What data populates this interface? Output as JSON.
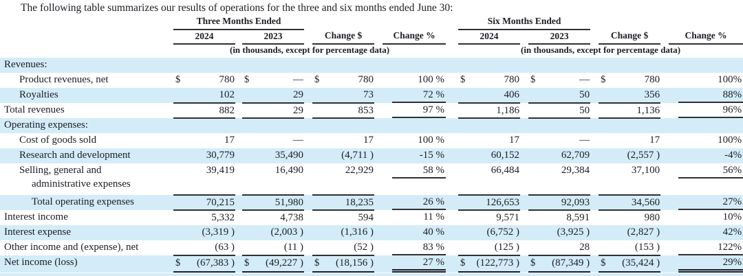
{
  "intro": "The following table summarizes our results of operations for the three and six months ended June 30:",
  "colors": {
    "stripe": "#d3ecf8",
    "text": "#1c1c24",
    "rule": "#2f2f2f"
  },
  "table": {
    "groups": [
      {
        "title": "Three Months Ended",
        "cols": [
          "2024",
          "2023",
          "Change $",
          "Change %"
        ],
        "note": "(in thousands, except for percentage data)"
      },
      {
        "title": "Six Months Ended",
        "cols": [
          "2024",
          "2023",
          "Change $",
          "Change %"
        ],
        "note": "(in thousands, except for percentage data)"
      }
    ],
    "rows": [
      {
        "label": "Revenues:",
        "indent": 0,
        "shaded": true,
        "rule": "none",
        "c": null
      },
      {
        "label": "Product revenues, net",
        "indent": 1,
        "shaded": false,
        "rule": "none",
        "c": [
          [
            "$",
            "780"
          ],
          [
            "$",
            "—"
          ],
          [
            "$",
            "780"
          ],
          "100 %",
          [
            "$",
            "780"
          ],
          [
            "$",
            "—"
          ],
          [
            "$",
            "780"
          ],
          "100%"
        ]
      },
      {
        "label": "Royalties",
        "indent": 1,
        "shaded": true,
        "rule": "below",
        "c": [
          [
            "",
            "102"
          ],
          [
            "",
            "29"
          ],
          [
            "",
            "73"
          ],
          "72 %",
          [
            "",
            "406"
          ],
          [
            "",
            "50"
          ],
          [
            "",
            "356"
          ],
          "88%"
        ]
      },
      {
        "label": "Total revenues",
        "indent": 0,
        "shaded": false,
        "rule": "below",
        "c": [
          [
            "",
            "882"
          ],
          [
            "",
            "29"
          ],
          [
            "",
            "853"
          ],
          "97 %",
          [
            "",
            "1,186"
          ],
          [
            "",
            "50"
          ],
          [
            "",
            "1,136"
          ],
          "96%"
        ]
      },
      {
        "label": "Operating expenses:",
        "indent": 0,
        "shaded": true,
        "rule": "none",
        "c": null
      },
      {
        "label": "Cost of goods sold",
        "indent": 1,
        "shaded": false,
        "rule": "none",
        "c": [
          [
            "",
            "17"
          ],
          [
            "",
            "—"
          ],
          [
            "",
            "17"
          ],
          "100 %",
          [
            "",
            "17"
          ],
          [
            "",
            "—"
          ],
          [
            "",
            "17"
          ],
          "100%"
        ]
      },
      {
        "label": "Research and development",
        "indent": 1,
        "shaded": true,
        "rule": "none",
        "c": [
          [
            "",
            "30,779"
          ],
          [
            "",
            "35,490"
          ],
          [
            "",
            "(4,711 )"
          ],
          "-15 %",
          [
            "",
            "60,152"
          ],
          [
            "",
            "62,709"
          ],
          [
            "",
            "(2,557 )"
          ],
          "-4%"
        ]
      },
      {
        "label": "Selling, general and",
        "label2": "administrative expenses",
        "indent": 1,
        "shaded": false,
        "rule": "below",
        "h": 46,
        "c": [
          [
            "",
            "39,419"
          ],
          [
            "",
            "16,490"
          ],
          [
            "",
            "22,929"
          ],
          "58 %",
          [
            "",
            "66,484"
          ],
          [
            "",
            "29,384"
          ],
          [
            "",
            "37,100"
          ],
          "56%"
        ]
      },
      {
        "label": "Total operating expenses",
        "indent": 2,
        "shaded": true,
        "rule": "below",
        "c": [
          [
            "",
            "70,215"
          ],
          [
            "",
            "51,980"
          ],
          [
            "",
            "18,235"
          ],
          "26 %",
          [
            "",
            "126,653"
          ],
          [
            "",
            "92,093"
          ],
          [
            "",
            "34,560"
          ],
          "27%"
        ]
      },
      {
        "label": "Interest income",
        "indent": 0,
        "shaded": false,
        "rule": "none",
        "c": [
          [
            "",
            "5,332"
          ],
          [
            "",
            "4,738"
          ],
          [
            "",
            "594"
          ],
          "11 %",
          [
            "",
            "9,571"
          ],
          [
            "",
            "8,591"
          ],
          [
            "",
            "980"
          ],
          "10%"
        ]
      },
      {
        "label": "Interest expense",
        "indent": 0,
        "shaded": true,
        "rule": "none",
        "c": [
          [
            "",
            "(3,319 )"
          ],
          [
            "",
            "(2,003 )"
          ],
          [
            "",
            "(1,316 )"
          ],
          "40 %",
          [
            "",
            "(6,752 )"
          ],
          [
            "",
            "(3,925 )"
          ],
          [
            "",
            "(2,827 )"
          ],
          "42%"
        ]
      },
      {
        "label": "Other income and (expense), net",
        "indent": 0,
        "shaded": false,
        "rule": "below",
        "c": [
          [
            "",
            "(63 )"
          ],
          [
            "",
            "(11 )"
          ],
          [
            "",
            "(52 )"
          ],
          "83 %",
          [
            "",
            "(125 )"
          ],
          [
            "",
            "28"
          ],
          [
            "",
            "(153 )"
          ],
          "122%"
        ]
      },
      {
        "label": "Net income (loss)",
        "indent": 0,
        "shaded": true,
        "rule": "double",
        "h": 25,
        "c": [
          [
            "$",
            "(67,383 )"
          ],
          [
            "$",
            "(49,227 )"
          ],
          [
            "$",
            "(18,156 )"
          ],
          "27 %",
          [
            "$",
            "(122,773 )"
          ],
          [
            "$",
            "(87,349 )"
          ],
          [
            "$",
            "(35,424 )"
          ],
          "29%"
        ]
      }
    ]
  }
}
